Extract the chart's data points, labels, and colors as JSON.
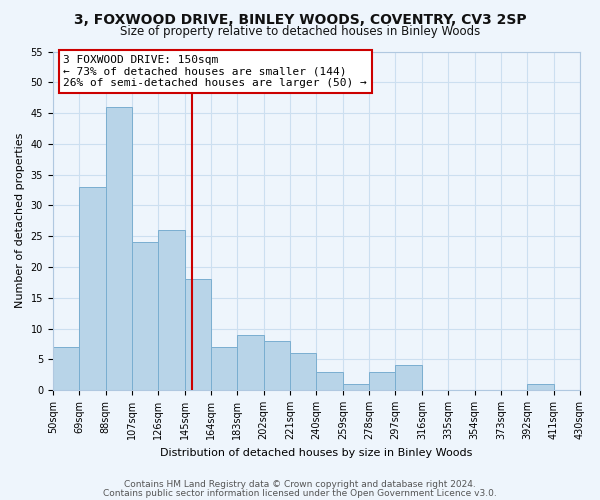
{
  "title": "3, FOXWOOD DRIVE, BINLEY WOODS, COVENTRY, CV3 2SP",
  "subtitle": "Size of property relative to detached houses in Binley Woods",
  "xlabel": "Distribution of detached houses by size in Binley Woods",
  "ylabel": "Number of detached properties",
  "footer_lines": [
    "Contains HM Land Registry data © Crown copyright and database right 2024.",
    "Contains public sector information licensed under the Open Government Licence v3.0."
  ],
  "bar_left_edges": [
    50,
    69,
    88,
    107,
    126,
    145,
    164,
    183,
    202,
    221,
    240,
    259,
    278,
    297,
    316,
    335,
    354,
    373,
    392,
    411
  ],
  "bar_heights": [
    7,
    33,
    46,
    24,
    26,
    18,
    7,
    9,
    8,
    6,
    3,
    1,
    3,
    4,
    0,
    0,
    0,
    0,
    1,
    0
  ],
  "bin_width": 19,
  "bar_color": "#b8d4e8",
  "bar_edgecolor": "#7aaed0",
  "tick_labels": [
    "50sqm",
    "69sqm",
    "88sqm",
    "107sqm",
    "126sqm",
    "145sqm",
    "164sqm",
    "183sqm",
    "202sqm",
    "221sqm",
    "240sqm",
    "259sqm",
    "278sqm",
    "297sqm",
    "316sqm",
    "335sqm",
    "354sqm",
    "373sqm",
    "392sqm",
    "411sqm",
    "430sqm"
  ],
  "ylim": [
    0,
    55
  ],
  "yticks": [
    0,
    5,
    10,
    15,
    20,
    25,
    30,
    35,
    40,
    45,
    50,
    55
  ],
  "property_line_x": 150,
  "property_line_color": "#cc0000",
  "annotation_text": "3 FOXWOOD DRIVE: 150sqm\n← 73% of detached houses are smaller (144)\n26% of semi-detached houses are larger (50) →",
  "annotation_box_color": "#ffffff",
  "annotation_box_edgecolor": "#cc0000",
  "grid_color": "#ccdff0",
  "background_color": "#eef5fc",
  "title_fontsize": 10,
  "subtitle_fontsize": 8.5,
  "axis_label_fontsize": 8,
  "tick_fontsize": 7,
  "annotation_fontsize": 8,
  "footer_fontsize": 6.5
}
